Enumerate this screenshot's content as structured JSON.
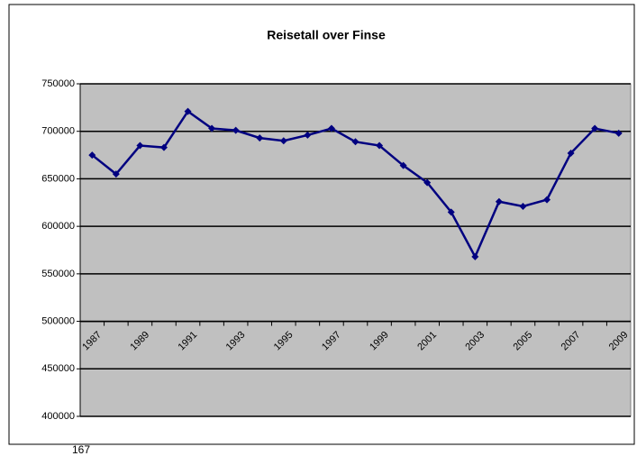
{
  "chart_data": {
    "type": "line",
    "title": "Reisetall over Finse",
    "categories": [
      "1987",
      null,
      "1989",
      null,
      "1991",
      null,
      "1993",
      null,
      "1995",
      null,
      "1997",
      null,
      "1999",
      null,
      "2001",
      null,
      "2003",
      null,
      "2005",
      null,
      "2007",
      null,
      "2009"
    ],
    "series": [
      {
        "name": "Reisetall",
        "color": "#000080",
        "values": [
          675000,
          655000,
          685000,
          683000,
          721000,
          703000,
          701000,
          693000,
          690000,
          696000,
          703000,
          689000,
          685000,
          664000,
          646000,
          615000,
          568000,
          626000,
          621000,
          628000,
          677000,
          703000,
          698000
        ]
      }
    ],
    "ylim": [
      400000,
      750000
    ],
    "yticks": [
      400000,
      450000,
      500000,
      550000,
      600000,
      650000,
      700000,
      750000
    ],
    "xaxis_crosses": 500000,
    "grid": true,
    "plot_background": "#c0c0c0"
  },
  "footer_text": "167"
}
